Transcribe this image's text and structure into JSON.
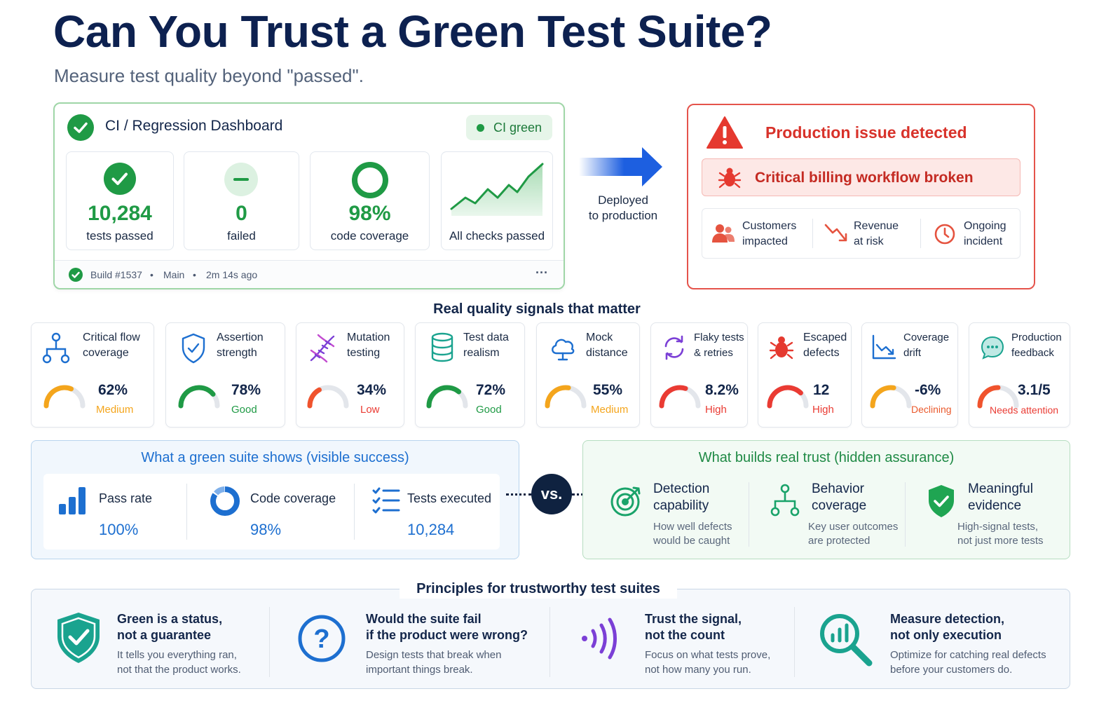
{
  "page": {
    "title": "Can You Trust a Green Test Suite?",
    "subtitle": "Measure test quality beyond \"passed\"."
  },
  "dashboard": {
    "title": "CI / Regression Dashboard",
    "status_pill": "CI green",
    "tiles": [
      {
        "value": "10,284",
        "label": "tests passed"
      },
      {
        "value": "0",
        "label": "failed"
      },
      {
        "value": "98%",
        "label": "code coverage"
      },
      {
        "value": "",
        "label": "All checks passed"
      }
    ],
    "footer": {
      "build": "Build #1537",
      "branch": "Main",
      "time": "2m 14s ago",
      "more": "···"
    }
  },
  "transition": {
    "line1": "Deployed",
    "line2": "to production"
  },
  "production": {
    "title": "Production issue detected",
    "banner": "Critical billing workflow broken",
    "impacts": [
      {
        "line1": "Customers",
        "line2": "impacted"
      },
      {
        "line1": "Revenue",
        "line2": "at risk"
      },
      {
        "line1": "Ongoing",
        "line2": "incident"
      }
    ]
  },
  "signals": {
    "heading": "Real quality signals that matter",
    "items": [
      {
        "line1": "Critical flow",
        "line2": "coverage",
        "value": "62%",
        "status": "Medium",
        "level": 0.62,
        "color": "#f4a51c"
      },
      {
        "line1": "Assertion",
        "line2": "strength",
        "value": "78%",
        "status": "Good",
        "level": 0.78,
        "color": "#1f9a45"
      },
      {
        "line1": "Mutation",
        "line2": "testing",
        "value": "34%",
        "status": "Low",
        "level": 0.34,
        "color": "#f0532d"
      },
      {
        "line1": "Test data",
        "line2": "realism",
        "value": "72%",
        "status": "Good",
        "level": 0.72,
        "color": "#1f9a45"
      },
      {
        "line1": "Mock",
        "line2": "distance",
        "value": "55%",
        "status": "Medium",
        "level": 0.55,
        "color": "#f4a51c"
      },
      {
        "line1": "Flaky tests",
        "line2": "& retries",
        "value": "8.2%",
        "status": "High",
        "level": 0.6,
        "color": "#ea3b33"
      },
      {
        "line1": "Escaped",
        "line2": "defects",
        "value": "12",
        "status": "High",
        "level": 0.75,
        "color": "#ea3b33"
      },
      {
        "line1": "Coverage",
        "line2": "drift",
        "value": "-6%",
        "status": "Declining",
        "level": 0.55,
        "color": "#f4a51c"
      },
      {
        "line1": "Production",
        "line2": "feedback",
        "value": "3.1/5",
        "status": "Needs attention",
        "level": 0.5,
        "color": "#f0532d"
      }
    ]
  },
  "visible_success": {
    "heading": "What a green suite shows (visible success)",
    "items": [
      {
        "label": "Pass rate",
        "value": "100%"
      },
      {
        "label": "Code coverage",
        "value": "98%"
      },
      {
        "label": "Tests executed",
        "value": "10,284"
      }
    ]
  },
  "vs_label": "vs.",
  "hidden_assurance": {
    "heading": "What builds real trust (hidden assurance)",
    "items": [
      {
        "line1": "Detection",
        "line2": "capability",
        "desc1": "How well defects",
        "desc2": "would be caught"
      },
      {
        "line1": "Behavior",
        "line2": "coverage",
        "desc1": "Key user outcomes",
        "desc2": "are protected"
      },
      {
        "line1": "Meaningful",
        "line2": "evidence",
        "desc1": "High-signal tests,",
        "desc2": "not just more tests"
      }
    ]
  },
  "principles": {
    "heading": "Principles for trustworthy test suites",
    "items": [
      {
        "t1": "Green is a status,",
        "t2": "not a guarantee",
        "d1": "It tells you everything ran,",
        "d2": "not that the product works."
      },
      {
        "t1": "Would the suite fail",
        "t2": "if the product were wrong?",
        "d1": "Design tests that break when",
        "d2": "important things break."
      },
      {
        "t1": "Trust the signal,",
        "t2": "not the count",
        "d1": "Focus on what tests prove,",
        "d2": "not how many you run."
      },
      {
        "t1": "Measure detection,",
        "t2": "not only execution",
        "d1": "Optimize for catching real defects",
        "d2": "before your customers do."
      }
    ]
  }
}
